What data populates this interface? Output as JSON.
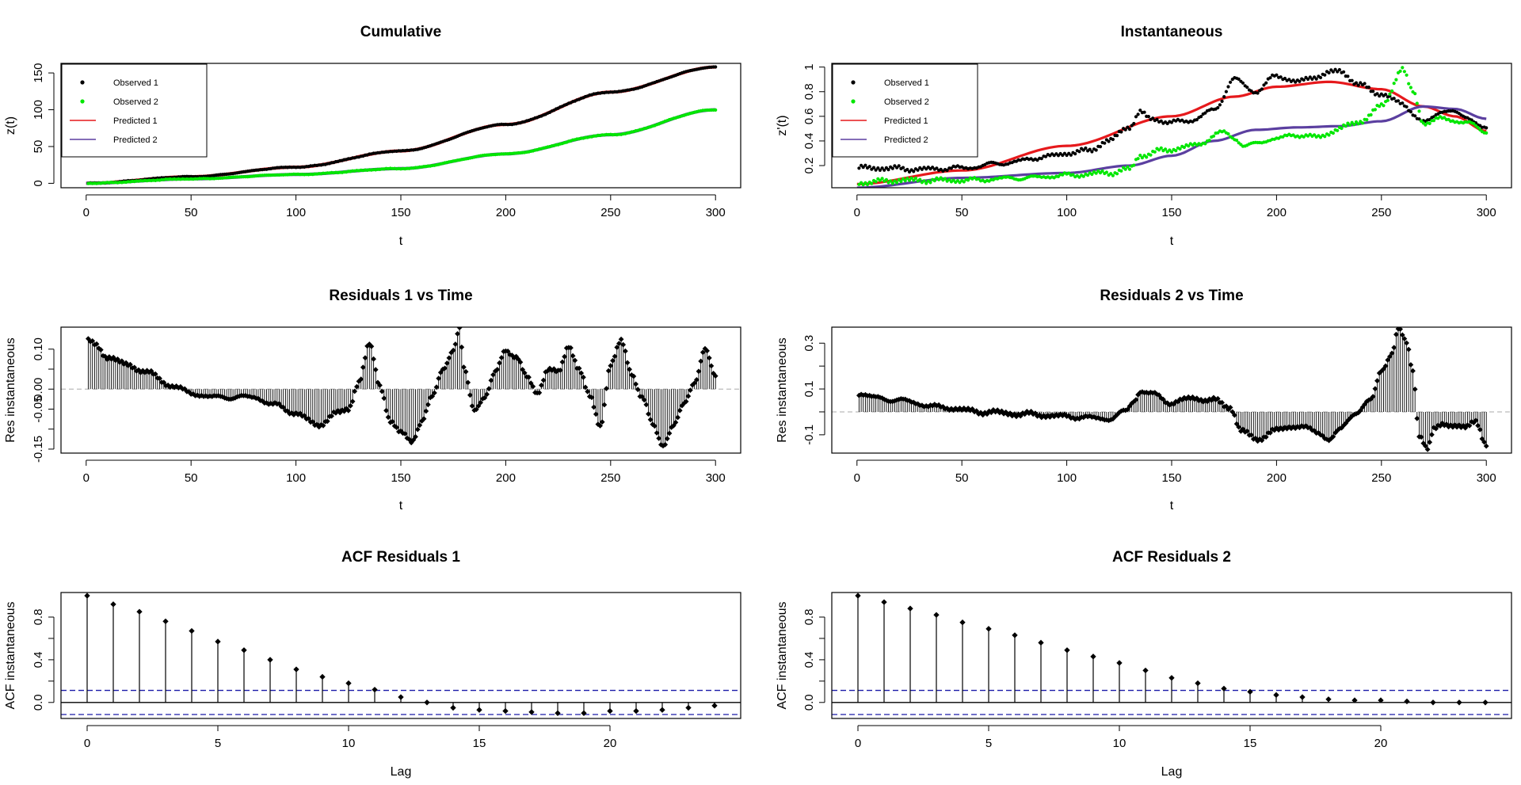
{
  "colors": {
    "obs1": "#000000",
    "obs2": "#00e600",
    "pred1": "#e6191c",
    "pred2": "#5b3fa0",
    "ci": "#1a1aa8",
    "zero": "#bbbbbb"
  },
  "chart_data": [
    {
      "id": "cumulative",
      "type": "line+scatter",
      "title": "Cumulative",
      "xlabel": "t",
      "ylabel": "z(t)",
      "xlim": [
        -12,
        312
      ],
      "ylim": [
        -6,
        163
      ],
      "xticks": [
        0,
        50,
        100,
        150,
        200,
        250,
        300
      ],
      "yticks": [
        0,
        50,
        100,
        150
      ],
      "legend": {
        "position": "top-left",
        "entries": [
          "Observed 1",
          "Observed 2",
          "Predicted 1",
          "Predicted 2"
        ]
      },
      "series": [
        {
          "name": "Observed 1",
          "kind": "points",
          "knots": [
            [
              0,
              0
            ],
            [
              50,
              9
            ],
            [
              100,
              22
            ],
            [
              150,
              44
            ],
            [
              200,
              80
            ],
            [
              250,
              124
            ],
            [
              300,
              158
            ]
          ]
        },
        {
          "name": "Observed 2",
          "kind": "points",
          "knots": [
            [
              0,
              0
            ],
            [
              50,
              6
            ],
            [
              100,
              12
            ],
            [
              150,
              20
            ],
            [
              200,
              40
            ],
            [
              250,
              66
            ],
            [
              300,
              100
            ]
          ]
        },
        {
          "name": "Predicted 1",
          "kind": "line",
          "knots": [
            [
              0,
              0
            ],
            [
              50,
              9
            ],
            [
              100,
              22
            ],
            [
              150,
              44
            ],
            [
              200,
              80
            ],
            [
              250,
              124
            ],
            [
              300,
              158
            ]
          ]
        },
        {
          "name": "Predicted 2",
          "kind": "line",
          "knots": [
            [
              0,
              0
            ],
            [
              50,
              6
            ],
            [
              100,
              12
            ],
            [
              150,
              20
            ],
            [
              200,
              40
            ],
            [
              250,
              66
            ],
            [
              300,
              100
            ]
          ]
        }
      ]
    },
    {
      "id": "instantaneous",
      "type": "line+scatter",
      "title": "Instantaneous",
      "xlabel": "t",
      "ylabel": "z'(t)",
      "xlim": [
        -12,
        312
      ],
      "ylim": [
        0.02,
        1.03
      ],
      "xticks": [
        0,
        50,
        100,
        150,
        200,
        250,
        300
      ],
      "yticks": [
        0.2,
        0.4,
        0.6,
        0.8,
        1.0
      ],
      "legend": {
        "position": "top-left",
        "entries": [
          "Observed 1",
          "Observed 2",
          "Predicted 1",
          "Predicted 2"
        ]
      },
      "series": [
        {
          "name": "Observed 1",
          "kind": "points",
          "knots": [
            [
              0,
              0.18
            ],
            [
              10,
              0.18
            ],
            [
              30,
              0.17
            ],
            [
              50,
              0.18
            ],
            [
              70,
              0.22
            ],
            [
              90,
              0.27
            ],
            [
              100,
              0.3
            ],
            [
              110,
              0.32
            ],
            [
              120,
              0.4
            ],
            [
              130,
              0.52
            ],
            [
              135,
              0.63
            ],
            [
              140,
              0.58
            ],
            [
              150,
              0.55
            ],
            [
              160,
              0.57
            ],
            [
              170,
              0.65
            ],
            [
              180,
              0.9
            ],
            [
              190,
              0.8
            ],
            [
              200,
              0.93
            ],
            [
              210,
              0.88
            ],
            [
              220,
              0.93
            ],
            [
              230,
              0.97
            ],
            [
              240,
              0.85
            ],
            [
              250,
              0.78
            ],
            [
              260,
              0.7
            ],
            [
              270,
              0.55
            ],
            [
              280,
              0.65
            ],
            [
              290,
              0.6
            ],
            [
              300,
              0.5
            ]
          ]
        },
        {
          "name": "Observed 2",
          "kind": "points",
          "knots": [
            [
              0,
              0.06
            ],
            [
              20,
              0.08
            ],
            [
              50,
              0.08
            ],
            [
              80,
              0.1
            ],
            [
              100,
              0.12
            ],
            [
              120,
              0.14
            ],
            [
              130,
              0.17
            ],
            [
              135,
              0.28
            ],
            [
              145,
              0.32
            ],
            [
              160,
              0.36
            ],
            [
              175,
              0.47
            ],
            [
              180,
              0.42
            ],
            [
              185,
              0.36
            ],
            [
              200,
              0.42
            ],
            [
              210,
              0.45
            ],
            [
              220,
              0.43
            ],
            [
              230,
              0.5
            ],
            [
              240,
              0.56
            ],
            [
              250,
              0.68
            ],
            [
              260,
              0.98
            ],
            [
              265,
              0.8
            ],
            [
              270,
              0.55
            ],
            [
              280,
              0.58
            ],
            [
              290,
              0.55
            ],
            [
              300,
              0.48
            ]
          ]
        },
        {
          "name": "Predicted 1",
          "kind": "line",
          "knots": [
            [
              0,
              0.05
            ],
            [
              50,
              0.16
            ],
            [
              100,
              0.36
            ],
            [
              150,
              0.6
            ],
            [
              180,
              0.76
            ],
            [
              200,
              0.84
            ],
            [
              225,
              0.88
            ],
            [
              250,
              0.82
            ],
            [
              270,
              0.68
            ],
            [
              285,
              0.6
            ],
            [
              300,
              0.48
            ]
          ]
        },
        {
          "name": "Predicted 2",
          "kind": "line",
          "knots": [
            [
              0,
              0.02
            ],
            [
              50,
              0.1
            ],
            [
              100,
              0.14
            ],
            [
              130,
              0.2
            ],
            [
              150,
              0.28
            ],
            [
              170,
              0.4
            ],
            [
              190,
              0.49
            ],
            [
              210,
              0.51
            ],
            [
              230,
              0.52
            ],
            [
              250,
              0.56
            ],
            [
              270,
              0.68
            ],
            [
              285,
              0.66
            ],
            [
              300,
              0.58
            ]
          ]
        }
      ]
    },
    {
      "id": "residuals1",
      "type": "stem",
      "title": "Residuals 1 vs Time",
      "xlabel": "t",
      "ylabel": "Res instantaneous",
      "xlim": [
        -12,
        312
      ],
      "ylim": [
        -0.16,
        0.155
      ],
      "xticks": [
        0,
        50,
        100,
        150,
        200,
        250,
        300
      ],
      "yticks": [
        -0.15,
        -0.1,
        -0.05,
        0.0,
        0.05,
        0.1
      ],
      "ytick_labels": [
        "-0.15",
        "",
        "-0.05",
        "0.00",
        "",
        "0.10"
      ],
      "knots": [
        [
          0,
          0.12
        ],
        [
          5,
          0.11
        ],
        [
          10,
          0.08
        ],
        [
          20,
          0.06
        ],
        [
          30,
          0.04
        ],
        [
          40,
          0.01
        ],
        [
          50,
          -0.01
        ],
        [
          60,
          -0.02
        ],
        [
          70,
          -0.02
        ],
        [
          80,
          -0.02
        ],
        [
          90,
          -0.04
        ],
        [
          100,
          -0.06
        ],
        [
          110,
          -0.09
        ],
        [
          120,
          -0.06
        ],
        [
          125,
          -0.05
        ],
        [
          130,
          0.02
        ],
        [
          135,
          0.11
        ],
        [
          140,
          0.01
        ],
        [
          145,
          -0.08
        ],
        [
          150,
          -0.11
        ],
        [
          155,
          -0.13
        ],
        [
          160,
          -0.08
        ],
        [
          165,
          -0.02
        ],
        [
          170,
          0.05
        ],
        [
          175,
          0.1
        ],
        [
          178,
          0.15
        ],
        [
          180,
          0.05
        ],
        [
          185,
          -0.05
        ],
        [
          190,
          -0.02
        ],
        [
          195,
          0.04
        ],
        [
          200,
          0.1
        ],
        [
          205,
          0.08
        ],
        [
          210,
          0.03
        ],
        [
          215,
          -0.01
        ],
        [
          220,
          0.05
        ],
        [
          225,
          0.04
        ],
        [
          230,
          0.11
        ],
        [
          235,
          0.05
        ],
        [
          240,
          -0.02
        ],
        [
          245,
          -0.09
        ],
        [
          250,
          0.06
        ],
        [
          255,
          0.12
        ],
        [
          260,
          0.04
        ],
        [
          265,
          -0.02
        ],
        [
          270,
          -0.09
        ],
        [
          275,
          -0.14
        ],
        [
          280,
          -0.09
        ],
        [
          285,
          -0.04
        ],
        [
          290,
          0.02
        ],
        [
          295,
          0.1
        ],
        [
          300,
          0.03
        ]
      ]
    },
    {
      "id": "residuals2",
      "type": "stem",
      "title": "Residuals 2 vs Time",
      "xlabel": "t",
      "ylabel": "Res instantaneous",
      "xlim": [
        -12,
        312
      ],
      "ylim": [
        -0.18,
        0.37
      ],
      "xticks": [
        0,
        50,
        100,
        150,
        200,
        250,
        300
      ],
      "yticks": [
        -0.1,
        0.0,
        0.1,
        0.2,
        0.3
      ],
      "ytick_labels": [
        "-0.1",
        "",
        "0.1",
        "",
        "0.3"
      ],
      "knots": [
        [
          0,
          0.08
        ],
        [
          10,
          0.06
        ],
        [
          20,
          0.05
        ],
        [
          40,
          0.02
        ],
        [
          60,
          0.0
        ],
        [
          80,
          -0.01
        ],
        [
          100,
          -0.02
        ],
        [
          120,
          -0.03
        ],
        [
          128,
          0.0
        ],
        [
          132,
          0.05
        ],
        [
          135,
          0.09
        ],
        [
          140,
          0.08
        ],
        [
          150,
          0.04
        ],
        [
          160,
          0.06
        ],
        [
          170,
          0.05
        ],
        [
          178,
          0.02
        ],
        [
          183,
          -0.08
        ],
        [
          190,
          -0.12
        ],
        [
          200,
          -0.08
        ],
        [
          210,
          -0.06
        ],
        [
          220,
          -0.09
        ],
        [
          225,
          -0.12
        ],
        [
          230,
          -0.08
        ],
        [
          238,
          0.0
        ],
        [
          245,
          0.05
        ],
        [
          250,
          0.18
        ],
        [
          255,
          0.26
        ],
        [
          258,
          0.36
        ],
        [
          262,
          0.3
        ],
        [
          265,
          0.18
        ],
        [
          268,
          -0.1
        ],
        [
          272,
          -0.16
        ],
        [
          275,
          -0.08
        ],
        [
          280,
          -0.05
        ],
        [
          290,
          -0.07
        ],
        [
          295,
          -0.04
        ],
        [
          300,
          -0.14
        ]
      ]
    },
    {
      "id": "acf1",
      "type": "stem",
      "title": "ACF Residuals 1",
      "xlabel": "Lag",
      "ylabel": "ACF instantaneous",
      "xlim": [
        -1,
        25
      ],
      "ylim": [
        -0.15,
        1.03
      ],
      "xticks": [
        0,
        5,
        10,
        15,
        20
      ],
      "yticks": [
        0.0,
        0.2,
        0.4,
        0.6,
        0.8
      ],
      "ytick_labels": [
        "0.0",
        "",
        "0.4",
        "",
        "0.8"
      ],
      "ci": 0.113,
      "lags": [
        0,
        1,
        2,
        3,
        4,
        5,
        6,
        7,
        8,
        9,
        10,
        11,
        12,
        13,
        14,
        15,
        16,
        17,
        18,
        19,
        20,
        21,
        22,
        23,
        24
      ],
      "values": [
        1.0,
        0.92,
        0.85,
        0.76,
        0.67,
        0.57,
        0.49,
        0.4,
        0.31,
        0.24,
        0.18,
        0.12,
        0.05,
        0.0,
        -0.05,
        -0.07,
        -0.08,
        -0.09,
        -0.1,
        -0.1,
        -0.08,
        -0.08,
        -0.07,
        -0.05,
        -0.03
      ]
    },
    {
      "id": "acf2",
      "type": "stem",
      "title": "ACF Residuals 2",
      "xlabel": "Lag",
      "ylabel": "ACF instantaneous",
      "xlim": [
        -1,
        25
      ],
      "ylim": [
        -0.15,
        1.03
      ],
      "xticks": [
        0,
        5,
        10,
        15,
        20
      ],
      "yticks": [
        0.0,
        0.2,
        0.4,
        0.6,
        0.8
      ],
      "ytick_labels": [
        "0.0",
        "",
        "0.4",
        "",
        "0.8"
      ],
      "ci": 0.113,
      "lags": [
        0,
        1,
        2,
        3,
        4,
        5,
        6,
        7,
        8,
        9,
        10,
        11,
        12,
        13,
        14,
        15,
        16,
        17,
        18,
        19,
        20,
        21,
        22,
        23,
        24
      ],
      "values": [
        1.0,
        0.94,
        0.88,
        0.82,
        0.75,
        0.69,
        0.63,
        0.56,
        0.49,
        0.43,
        0.37,
        0.3,
        0.23,
        0.18,
        0.13,
        0.1,
        0.07,
        0.05,
        0.03,
        0.02,
        0.02,
        0.01,
        0.0,
        0.0,
        0.0
      ]
    }
  ]
}
